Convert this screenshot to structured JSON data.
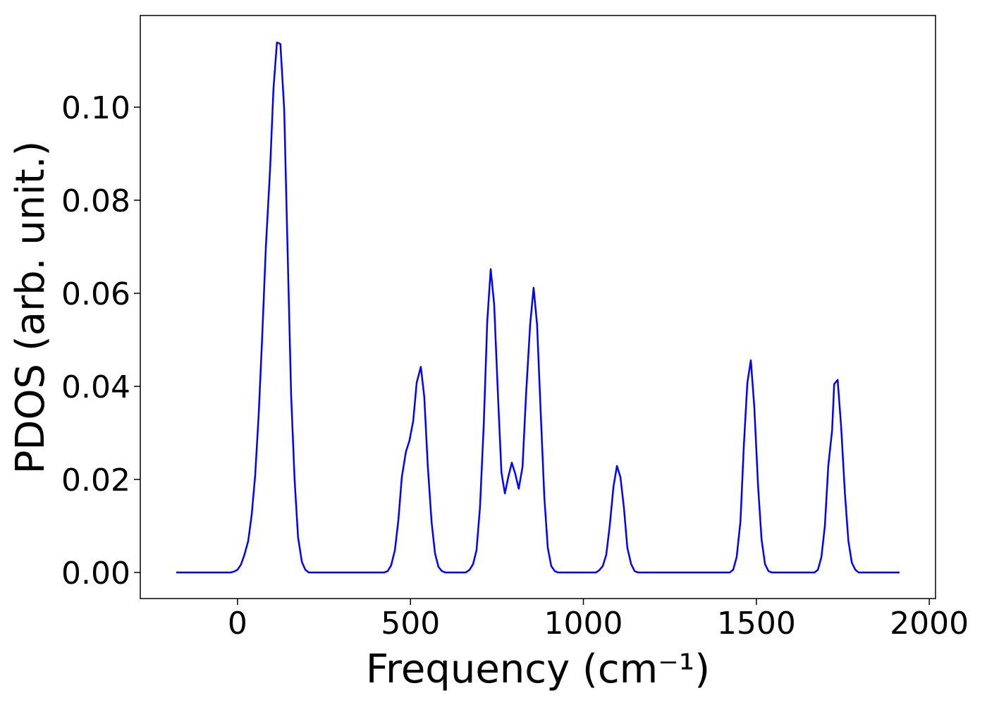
{
  "chart_data": {
    "type": "line",
    "xlabel": "Frequency (cm⁻¹)",
    "ylabel": "PDOS (arb. unit.)",
    "x": [
      -177,
      -20,
      -10,
      0,
      10,
      20,
      31,
      41,
      51,
      61,
      71,
      82,
      94,
      104,
      114,
      124,
      135,
      145,
      155,
      165,
      175,
      186,
      196,
      206,
      424,
      434,
      444,
      455,
      465,
      475,
      487,
      497,
      508,
      518,
      530,
      540,
      550,
      561,
      571,
      581,
      591,
      601,
      660,
      671,
      681,
      691,
      701,
      712,
      722,
      732,
      742,
      753,
      763,
      773,
      783,
      793,
      803,
      813,
      824,
      834,
      846,
      856,
      866,
      877,
      887,
      897,
      907,
      917,
      927,
      1036,
      1046,
      1056,
      1066,
      1076,
      1087,
      1097,
      1107,
      1117,
      1127,
      1138,
      1148,
      1158,
      1423,
      1433,
      1443,
      1454,
      1464,
      1474,
      1484,
      1494,
      1505,
      1515,
      1525,
      1535,
      1545,
      1668,
      1678,
      1688,
      1698,
      1708,
      1719,
      1725,
      1735,
      1745,
      1756,
      1766,
      1776,
      1786,
      1796,
      1914
    ],
    "series": [
      {
        "color": "#0000ff",
        "values": [
          0,
          0,
          0.0002,
          0.0006,
          0.0017,
          0.0038,
          0.0068,
          0.0124,
          0.0208,
          0.0336,
          0.05,
          0.07,
          0.0864,
          0.104,
          0.1139,
          0.1136,
          0.0995,
          0.0685,
          0.0382,
          0.02,
          0.0076,
          0.0023,
          0.0006,
          0,
          0,
          0.0003,
          0.0015,
          0.0048,
          0.0112,
          0.0205,
          0.026,
          0.0283,
          0.0326,
          0.0408,
          0.0442,
          0.0377,
          0.023,
          0.0109,
          0.0041,
          0.0012,
          0.0003,
          0,
          0,
          0.0006,
          0.0018,
          0.0048,
          0.014,
          0.032,
          0.054,
          0.0652,
          0.0576,
          0.038,
          0.0215,
          0.017,
          0.0206,
          0.0236,
          0.0212,
          0.018,
          0.0227,
          0.038,
          0.0533,
          0.0612,
          0.0533,
          0.0336,
          0.0162,
          0.0053,
          0.0014,
          0.0003,
          0,
          0,
          0.0005,
          0.0014,
          0.0038,
          0.01,
          0.0185,
          0.0229,
          0.0205,
          0.014,
          0.0053,
          0.0018,
          0.0003,
          0,
          0,
          0.0006,
          0.0033,
          0.011,
          0.0276,
          0.0408,
          0.0456,
          0.0356,
          0.0185,
          0.0071,
          0.0018,
          0.0003,
          0,
          0,
          0.0006,
          0.0033,
          0.01,
          0.023,
          0.0306,
          0.0405,
          0.0414,
          0.0314,
          0.017,
          0.0068,
          0.0021,
          0.0006,
          0,
          0
        ]
      }
    ],
    "xlim": [
      -281,
      2018
    ],
    "ylim": [
      -0.0056,
      0.1197
    ],
    "xticks": [
      0,
      500,
      1000,
      1500,
      2000
    ],
    "yticks": [
      {
        "value": 0,
        "label": "0.00"
      },
      {
        "value": 0.02,
        "label": "0.02"
      },
      {
        "value": 0.04,
        "label": "0.04"
      },
      {
        "value": 0.06,
        "label": "0.06"
      },
      {
        "value": 0.08,
        "label": "0.08"
      },
      {
        "value": 0.1,
        "label": "0.10"
      }
    ],
    "grid": false
  }
}
